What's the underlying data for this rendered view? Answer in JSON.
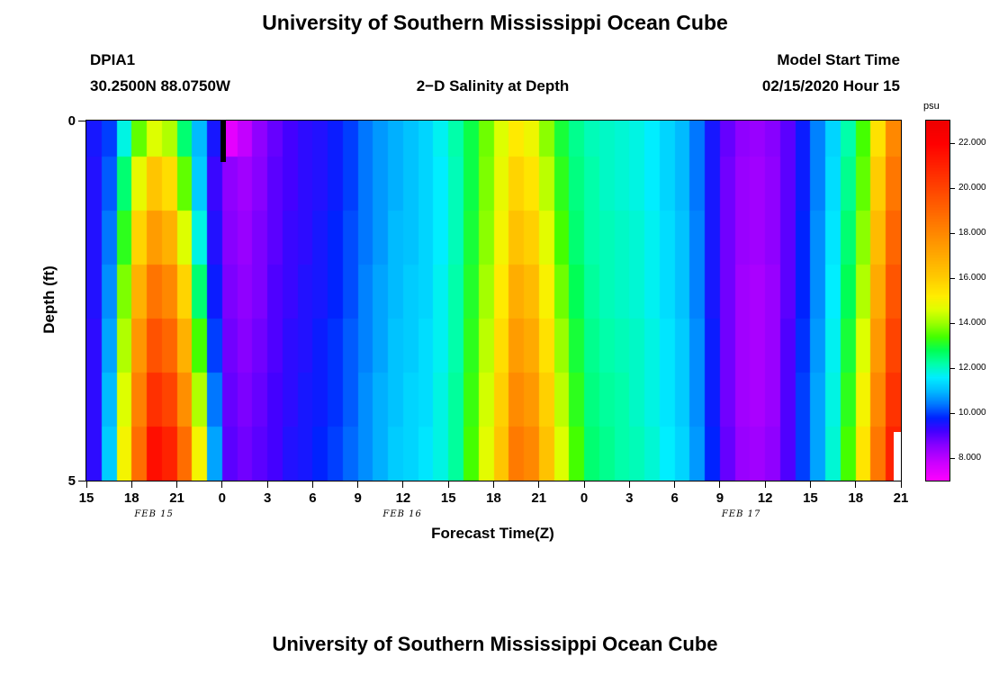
{
  "page": {
    "top_title": "University of Southern Mississippi Ocean Cube",
    "bottom_title": "University of Southern Mississippi Ocean Cube"
  },
  "header": {
    "station_id": "DPIA1",
    "coordinates": "30.2500N 88.0750W",
    "plot_subtitle": "2−D Salinity at Depth",
    "model_start_label": "Model Start Time",
    "model_start_value": "02/15/2020 Hour 15"
  },
  "chart_data": {
    "type": "heatmap",
    "title": "2−D Salinity at Depth",
    "xlabel": "Forecast Time(Z)",
    "ylabel": "Depth (ft)",
    "units_label": "psu",
    "x_hours_start": 15,
    "x_hours_span": 54,
    "x_ticks": [
      "15",
      "18",
      "21",
      "0",
      "3",
      "6",
      "9",
      "12",
      "15",
      "18",
      "21",
      "0",
      "3",
      "6",
      "9",
      "12",
      "15",
      "18",
      "21"
    ],
    "date_labels": [
      {
        "label": "FEB 15",
        "pos_pct": 8.3
      },
      {
        "label": "FEB 16",
        "pos_pct": 38.8
      },
      {
        "label": "FEB 17",
        "pos_pct": 80.4
      }
    ],
    "y_ticks": [
      {
        "label": "0",
        "pos_pct": 0
      },
      {
        "label": "5",
        "pos_pct": 100
      }
    ],
    "depth_range_ft": [
      0,
      5
    ],
    "depth_edges_ft": [
      0,
      0.5,
      1.25,
      2.0,
      2.75,
      3.5,
      4.25,
      5.0
    ],
    "values_psu": [
      [
        9.6,
        10.0,
        11.8,
        13.6,
        14.6,
        14.2,
        12.6,
        11.0,
        9.6,
        7.4,
        7.9,
        8.5,
        8.9,
        9.2,
        9.4,
        9.5,
        9.7,
        10.0,
        10.4,
        10.7,
        10.9,
        11.1,
        11.3,
        11.7,
        12.2,
        12.9,
        13.7,
        14.6,
        15.3,
        14.9,
        13.9,
        13.0,
        12.4,
        12.1,
        12.0,
        11.9,
        11.8,
        11.6,
        11.3,
        11.0,
        10.4,
        9.6,
        8.9,
        8.5,
        8.4,
        8.6,
        9.0,
        9.7,
        10.5,
        11.3,
        12.2,
        13.4,
        15.5,
        18.0
      ],
      [
        9.5,
        10.2,
        12.6,
        14.8,
        16.2,
        15.6,
        13.6,
        11.2,
        9.3,
        8.5,
        8.3,
        8.6,
        9.0,
        9.2,
        9.4,
        9.5,
        9.7,
        10.0,
        10.4,
        10.7,
        10.9,
        11.1,
        11.3,
        11.6,
        12.1,
        12.9,
        13.8,
        14.8,
        15.8,
        15.4,
        14.3,
        13.2,
        12.5,
        12.2,
        12.0,
        11.9,
        11.8,
        11.6,
        11.3,
        11.0,
        10.4,
        9.6,
        8.8,
        8.4,
        8.3,
        8.5,
        9.0,
        9.7,
        10.5,
        11.4,
        12.4,
        13.6,
        16.0,
        18.5
      ],
      [
        9.5,
        10.4,
        13.2,
        15.8,
        17.4,
        16.8,
        14.6,
        11.8,
        9.5,
        8.6,
        8.4,
        8.7,
        9.0,
        9.3,
        9.4,
        9.6,
        9.8,
        10.1,
        10.4,
        10.7,
        11.0,
        11.1,
        11.3,
        11.6,
        12.1,
        13.0,
        13.9,
        15.0,
        16.3,
        15.9,
        14.7,
        13.4,
        12.6,
        12.2,
        12.1,
        12.0,
        11.9,
        11.7,
        11.4,
        11.1,
        10.5,
        9.6,
        8.8,
        8.4,
        8.3,
        8.5,
        9.0,
        9.8,
        10.6,
        11.5,
        12.6,
        13.9,
        16.5,
        19.0
      ],
      [
        9.5,
        10.6,
        13.8,
        16.8,
        18.6,
        18.0,
        15.8,
        12.6,
        9.7,
        8.7,
        8.5,
        8.7,
        9.1,
        9.3,
        9.5,
        9.6,
        9.8,
        10.1,
        10.5,
        10.8,
        11.0,
        11.2,
        11.3,
        11.7,
        12.2,
        13.1,
        14.1,
        15.3,
        16.9,
        16.5,
        15.1,
        13.7,
        12.8,
        12.3,
        12.1,
        12.0,
        11.9,
        11.7,
        11.4,
        11.1,
        10.5,
        9.6,
        8.8,
        8.3,
        8.2,
        8.4,
        9.0,
        9.8,
        10.6,
        11.6,
        12.8,
        14.2,
        17.0,
        19.5
      ],
      [
        9.4,
        10.8,
        14.2,
        17.6,
        19.6,
        19.0,
        16.8,
        13.4,
        10.0,
        8.8,
        8.6,
        8.8,
        9.1,
        9.4,
        9.5,
        9.7,
        9.9,
        10.2,
        10.5,
        10.8,
        11.1,
        11.2,
        11.4,
        11.7,
        12.2,
        13.2,
        14.3,
        15.6,
        17.4,
        17.0,
        15.5,
        14.0,
        13.0,
        12.4,
        12.2,
        12.1,
        12.0,
        11.8,
        11.5,
        11.2,
        10.6,
        9.7,
        8.8,
        8.3,
        8.2,
        8.4,
        9.1,
        9.9,
        10.7,
        11.7,
        13.0,
        14.6,
        17.5,
        20.0
      ],
      [
        9.4,
        11.0,
        14.6,
        18.2,
        20.6,
        20.0,
        17.8,
        14.2,
        10.4,
        8.9,
        8.7,
        8.9,
        9.2,
        9.4,
        9.6,
        9.7,
        9.9,
        10.2,
        10.6,
        10.9,
        11.1,
        11.3,
        11.4,
        11.8,
        12.3,
        13.3,
        14.5,
        15.9,
        17.9,
        17.5,
        15.9,
        14.3,
        13.2,
        12.5,
        12.3,
        12.2,
        12.0,
        11.8,
        11.5,
        11.2,
        10.6,
        9.7,
        8.8,
        8.3,
        8.2,
        8.4,
        9.1,
        10.0,
        10.8,
        11.8,
        13.2,
        15.0,
        18.0,
        20.5
      ],
      [
        9.4,
        11.2,
        15.0,
        18.8,
        21.6,
        21.0,
        18.8,
        15.0,
        10.8,
        9.0,
        8.8,
        9.0,
        9.2,
        9.5,
        9.6,
        9.8,
        10.0,
        10.3,
        10.6,
        10.9,
        11.2,
        11.3,
        11.5,
        11.8,
        12.3,
        13.4,
        14.7,
        16.2,
        18.4,
        18.0,
        16.3,
        14.6,
        13.4,
        12.6,
        12.4,
        12.2,
        12.1,
        11.9,
        11.6,
        11.3,
        10.7,
        9.8,
        8.9,
        8.4,
        8.3,
        8.5,
        9.1,
        10.0,
        10.8,
        11.9,
        13.4,
        15.4,
        18.5,
        21.0
      ]
    ],
    "colorbar": {
      "vmin": 7.0,
      "vmax": 23.0,
      "ticks": [
        {
          "label": "8.000",
          "value": 8
        },
        {
          "label": "10.000",
          "value": 10
        },
        {
          "label": "12.000",
          "value": 12
        },
        {
          "label": "14.000",
          "value": 14
        },
        {
          "label": "16.000",
          "value": 16
        },
        {
          "label": "18.000",
          "value": 18
        },
        {
          "label": "20.000",
          "value": 20
        },
        {
          "label": "22.000",
          "value": 22
        }
      ]
    },
    "colormap_stops": [
      [
        7.0,
        255,
        0,
        255
      ],
      [
        7.8,
        204,
        0,
        255
      ],
      [
        8.6,
        136,
        0,
        255
      ],
      [
        9.2,
        68,
        0,
        255
      ],
      [
        9.8,
        0,
        34,
        255
      ],
      [
        10.4,
        0,
        119,
        255
      ],
      [
        11.0,
        0,
        187,
        255
      ],
      [
        11.6,
        0,
        238,
        255
      ],
      [
        12.2,
        0,
        255,
        170
      ],
      [
        12.8,
        0,
        255,
        85
      ],
      [
        13.4,
        68,
        255,
        0
      ],
      [
        14.0,
        153,
        255,
        0
      ],
      [
        14.6,
        221,
        255,
        0
      ],
      [
        15.2,
        255,
        238,
        0
      ],
      [
        16.0,
        255,
        204,
        0
      ],
      [
        17.0,
        255,
        170,
        0
      ],
      [
        18.0,
        255,
        136,
        0
      ],
      [
        19.0,
        255,
        102,
        0
      ],
      [
        20.0,
        255,
        68,
        0
      ],
      [
        21.0,
        255,
        34,
        0
      ],
      [
        22.0,
        255,
        0,
        0
      ],
      [
        23.0,
        238,
        0,
        0
      ]
    ],
    "missing_marks": [
      {
        "name": "black-data-bar",
        "color": "#000000",
        "x_pct": 16.45,
        "w_pct": 0.65,
        "y_pct": 0,
        "h_pct": 11.5
      },
      {
        "name": "white-data-gap",
        "color": "#ffffff",
        "x_pct": 99.15,
        "w_pct": 0.85,
        "y_pct": 86.5,
        "h_pct": 13.5
      }
    ]
  }
}
